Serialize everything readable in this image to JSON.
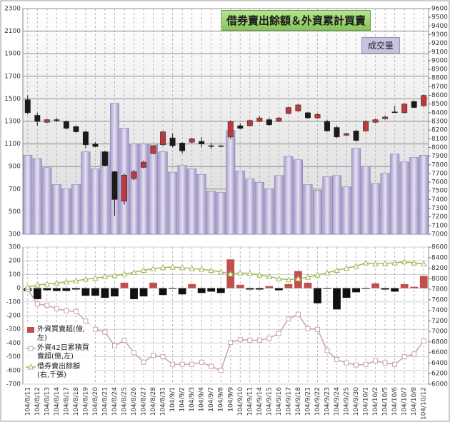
{
  "chart_data": [
    {
      "type": "combo",
      "title": "借券賣出餘額＆外資累計買賣",
      "annotation": "成交量",
      "ylim": [
        300,
        2300
      ],
      "yticks": [
        300,
        500,
        700,
        900,
        1100,
        1300,
        1500,
        1700,
        1900,
        2100,
        2300
      ],
      "y2lim": [
        7000,
        9600
      ],
      "y2ticks": [
        7000,
        7100,
        7200,
        7300,
        7400,
        7500,
        7600,
        7700,
        7800,
        7900,
        8000,
        8100,
        8200,
        8300,
        8400,
        8500,
        8600,
        8700,
        8800,
        8900,
        9000,
        9100,
        9200,
        9300,
        9400,
        9500,
        9600
      ],
      "grid": true,
      "series": [
        {
          "name": "成交量",
          "type": "bar",
          "color": "#c9c1e0",
          "values": [
            1000,
            970,
            890,
            740,
            700,
            740,
            1030,
            880,
            1030,
            1460,
            1240,
            1100,
            1100,
            1100,
            1030,
            850,
            910,
            880,
            830,
            680,
            670,
            1220,
            860,
            790,
            760,
            700,
            820,
            990,
            960,
            740,
            690,
            810,
            820,
            720,
            1060,
            900,
            750,
            840,
            1010,
            940,
            980,
            1000
          ]
        },
        {
          "type": "candlestick",
          "axis": "y2",
          "up_color": "#b83a3a",
          "down_color": "#1a1a1a",
          "open": [
            8550,
            8370,
            8290,
            8320,
            8300,
            8240,
            8180,
            8040,
            7950,
            7720,
            7380,
            7640,
            7770,
            7930,
            8030,
            8110,
            8050,
            8060,
            8070,
            8020,
            8010,
            8120,
            8250,
            8250,
            8300,
            8320,
            8300,
            8390,
            8420,
            8400,
            8340,
            8300,
            8230,
            8140,
            8190,
            8190,
            8290,
            8330,
            8410,
            8400,
            8530,
            8480
          ],
          "high": [
            8600,
            8400,
            8330,
            8340,
            8310,
            8250,
            8190,
            8060,
            7960,
            7730,
            7700,
            7740,
            7850,
            8030,
            8190,
            8160,
            8060,
            8110,
            8120,
            8050,
            8030,
            8310,
            8280,
            8320,
            8360,
            8340,
            8350,
            8470,
            8500,
            8410,
            8390,
            8320,
            8250,
            8170,
            8200,
            8310,
            8330,
            8370,
            8480,
            8510,
            8540,
            8610
          ],
          "low": [
            8380,
            8250,
            8280,
            8290,
            8210,
            8170,
            7990,
            8000,
            7780,
            7210,
            7340,
            7620,
            7760,
            7920,
            8020,
            8000,
            7930,
            8050,
            8000,
            7980,
            8000,
            8100,
            8210,
            8240,
            8290,
            8250,
            8290,
            8380,
            8410,
            8330,
            8330,
            8180,
            8110,
            8130,
            8070,
            8180,
            8280,
            8320,
            8400,
            8390,
            8450,
            8470
          ],
          "close": [
            8400,
            8300,
            8320,
            8310,
            8220,
            8180,
            8030,
            8010,
            7790,
            7400,
            7680,
            7720,
            7830,
            8020,
            8180,
            8020,
            7960,
            8100,
            8040,
            8010,
            8020,
            8300,
            8220,
            8310,
            8340,
            8260,
            8340,
            8460,
            8490,
            8340,
            8380,
            8190,
            8120,
            8160,
            8080,
            8300,
            8320,
            8350,
            8400,
            8500,
            8460,
            8600
          ]
        }
      ]
    },
    {
      "type": "combo",
      "categories": [
        "104/8/11",
        "104/8/12",
        "104/8/13",
        "104/8/14",
        "104/8/17",
        "104/8/18",
        "104/8/19",
        "104/8/20",
        "104/8/21",
        "104/8/24",
        "104/8/25",
        "104/8/26",
        "104/8/27",
        "104/8/28",
        "104/8/31",
        "104/9/1",
        "104/9/2",
        "104/9/3",
        "104/9/4",
        "104/9/7",
        "104/9/8",
        "104/9/9",
        "104/9/10",
        "104/9/11",
        "104/9/14",
        "104/9/15",
        "104/9/16",
        "104/9/17",
        "104/9/18",
        "104/9/21",
        "104/9/22",
        "104/9/23",
        "104/9/24",
        "104/9/25",
        "104/9/30",
        "104/10/1",
        "104/10/2",
        "104/10/5",
        "104/10/6",
        "104/10/7",
        "104/10/8",
        "104/10/12"
      ],
      "ylim": [
        -700,
        300
      ],
      "yticks": [
        -700,
        -600,
        -500,
        -400,
        -300,
        -200,
        -100,
        0,
        100,
        200,
        300
      ],
      "y2lim": [
        6000,
        8600
      ],
      "y2ticks": [
        6000,
        6200,
        6400,
        6600,
        6800,
        7000,
        7200,
        7400,
        7600,
        7800,
        8000,
        8200,
        8400,
        8600
      ],
      "grid": true,
      "legend": "lower left",
      "series": [
        {
          "name": "外資買賣超(億,左)",
          "type": "bar",
          "color": "#c0504d",
          "negative_color": "#111111",
          "values": [
            -20,
            -80,
            -15,
            -20,
            -20,
            -10,
            -55,
            -55,
            -70,
            -60,
            40,
            -80,
            -60,
            40,
            -50,
            -5,
            -45,
            30,
            -35,
            -25,
            -35,
            210,
            25,
            -10,
            -10,
            15,
            -15,
            30,
            125,
            40,
            -110,
            -5,
            -155,
            -70,
            -30,
            -5,
            35,
            -10,
            -25,
            30,
            10,
            90
          ]
        },
        {
          "name": "外資42日累積買賣超(億,左)",
          "type": "line",
          "marker": "square",
          "color": "#c9a0b8",
          "values": [
            -10,
            -115,
            -125,
            -150,
            -165,
            -170,
            -240,
            -300,
            -320,
            -420,
            -380,
            -470,
            -540,
            -490,
            -500,
            -555,
            -555,
            -555,
            -540,
            -570,
            -600,
            -395,
            -375,
            -380,
            -380,
            -365,
            -330,
            -225,
            -190,
            -295,
            -300,
            -455,
            -520,
            -545,
            -560,
            -555,
            -530,
            -545,
            -555,
            -500,
            -480,
            -385
          ]
        },
        {
          "name": "借券賣出餘額(右,千張)",
          "type": "line",
          "marker": "triangle",
          "color": "#9bbb59",
          "axis": "y2",
          "values": [
            7840,
            7880,
            7900,
            7920,
            7940,
            7960,
            7990,
            8010,
            8040,
            8060,
            8090,
            8120,
            8160,
            8190,
            8210,
            8220,
            8210,
            8190,
            8180,
            8160,
            8130,
            8090,
            8110,
            8100,
            8070,
            8040,
            8000,
            7980,
            8000,
            8030,
            8070,
            8110,
            8160,
            8200,
            8240,
            8300,
            8280,
            8290,
            8300,
            8320,
            8300,
            8280
          ]
        }
      ]
    }
  ]
}
